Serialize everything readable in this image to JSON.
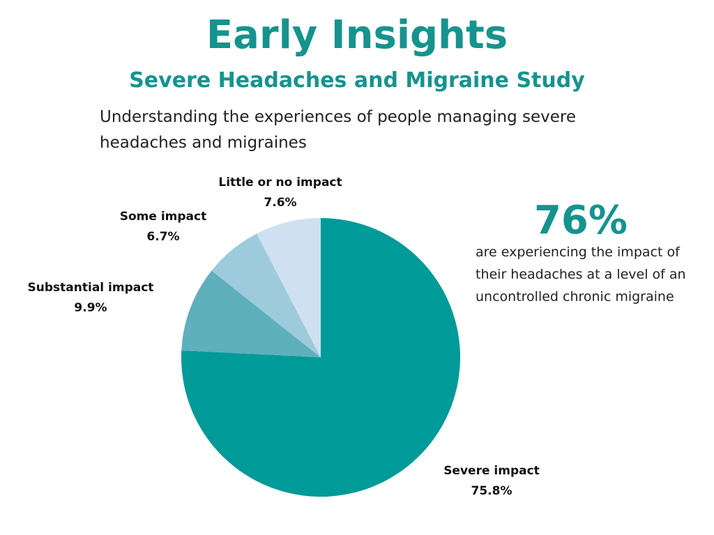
{
  "chart_data": {
    "type": "pie",
    "title": "Early Insights",
    "subtitle": "Severe Headaches and Migraine Study",
    "description": "Understanding the experiences of people managing severe headaches and migraines",
    "categories": [
      "Severe impact",
      "Substantial impact",
      "Some impact",
      "Little or no impact"
    ],
    "values": [
      75.8,
      9.9,
      6.7,
      7.6
    ],
    "value_labels": [
      "75.8%",
      "9.9%",
      "6.7%",
      "7.6%"
    ],
    "colors": [
      "#009a98",
      "#5eb0bd",
      "#9ecbdc",
      "#cfe0f1"
    ],
    "start_angle": 90,
    "direction": "clockwise",
    "callout": {
      "headline": "76%",
      "text": "are experiencing the impact of their headaches at a level of an uncontrolled chronic migraine"
    }
  }
}
